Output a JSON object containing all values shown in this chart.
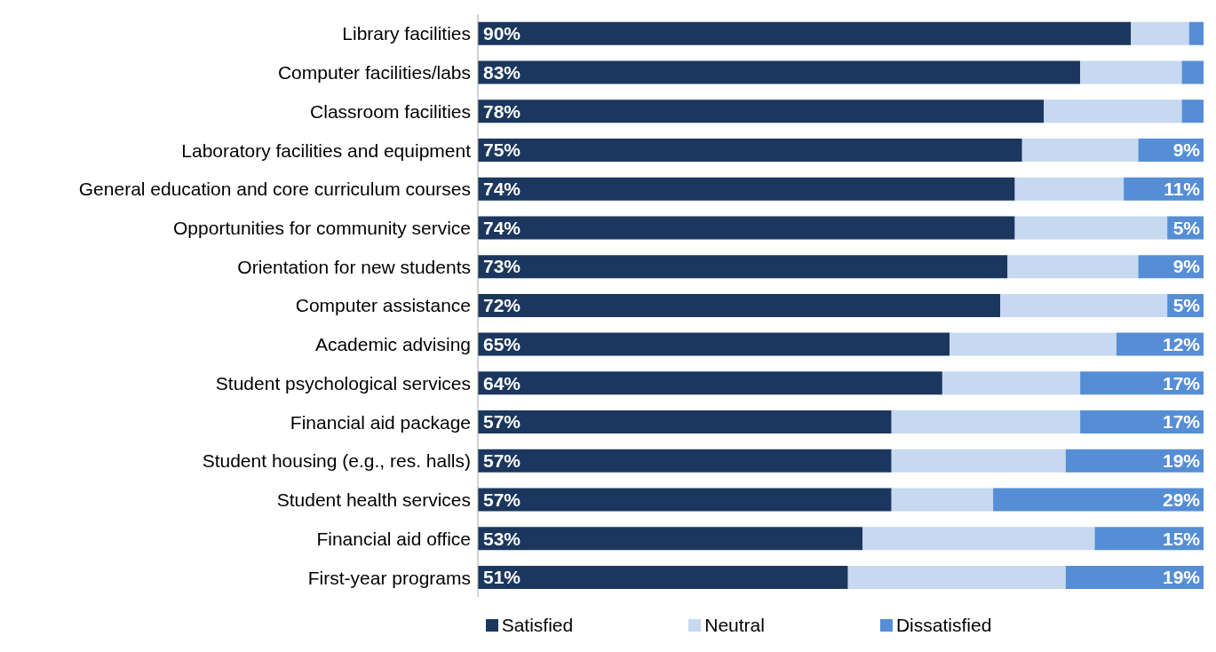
{
  "chart_data": {
    "type": "bar",
    "orientation": "horizontal",
    "stacked": true,
    "categories": [
      "Library facilities",
      "Computer facilities/labs",
      "Classroom facilities",
      "Laboratory facilities and equipment",
      "General education and core curriculum courses",
      "Opportunities for community service",
      "Orientation for new students",
      "Computer assistance",
      "Academic advising",
      "Student psychological services",
      "Financial aid package",
      "Student housing (e.g., res. halls)",
      "Student health services",
      "Financial aid office",
      "First-year programs"
    ],
    "series": [
      {
        "name": "Satisfied",
        "color": "#1b375e",
        "values": [
          90,
          83,
          78,
          75,
          74,
          74,
          73,
          72,
          65,
          64,
          57,
          57,
          57,
          53,
          51
        ],
        "value_labels": [
          "90%",
          "83%",
          "78%",
          "75%",
          "74%",
          "74%",
          "73%",
          "72%",
          "65%",
          "64%",
          "57%",
          "57%",
          "57%",
          "53%",
          "51%"
        ]
      },
      {
        "name": "Neutral",
        "color": "#c6d9f1",
        "values": [
          8,
          14,
          19,
          16,
          15,
          21,
          18,
          23,
          23,
          19,
          26,
          24,
          14,
          32,
          30
        ]
      },
      {
        "name": "Dissatisfied",
        "color": "#558ed5",
        "values": [
          2,
          3,
          3,
          9,
          11,
          5,
          9,
          5,
          12,
          17,
          17,
          19,
          29,
          15,
          19
        ],
        "value_labels": [
          null,
          null,
          null,
          "9%",
          "11%",
          "5%",
          "9%",
          "5%",
          "12%",
          "17%",
          "17%",
          "19%",
          "29%",
          "15%",
          "19%"
        ]
      }
    ],
    "xlim": [
      0,
      100
    ],
    "tick_labels": "y",
    "legend": "bottom"
  }
}
